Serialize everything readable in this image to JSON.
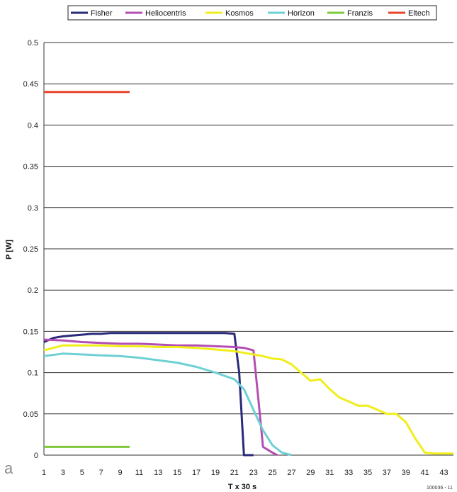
{
  "chart_data": {
    "type": "line",
    "panel_label": "a",
    "figure_code": "100036 - 11",
    "xlabel": "T x 30 s",
    "ylabel": "P [W]",
    "xlim": [
      1,
      44
    ],
    "ylim": [
      0,
      0.5
    ],
    "x_ticks": [
      "1",
      "3",
      "5",
      "7",
      "9",
      "11",
      "13",
      "15",
      "17",
      "19",
      "21",
      "23",
      "25",
      "27",
      "29",
      "31",
      "33",
      "35",
      "37",
      "39",
      "41",
      "43"
    ],
    "y_ticks": [
      "0",
      "0.05",
      "0.1",
      "0.15",
      "0.2",
      "0.25",
      "0.3",
      "0.35",
      "0.4",
      "0.45",
      "0.5"
    ],
    "grid": true,
    "legend_position": "top",
    "series": [
      {
        "name": "Fisher",
        "color": "#2a2a7a",
        "x": [
          1,
          2,
          3,
          4,
          5,
          6,
          7,
          8,
          9,
          10,
          11,
          12,
          13,
          14,
          15,
          16,
          17,
          18,
          19,
          20,
          21,
          21.5,
          22,
          23
        ],
        "y": [
          0.137,
          0.142,
          0.144,
          0.145,
          0.146,
          0.147,
          0.147,
          0.148,
          0.148,
          0.148,
          0.148,
          0.148,
          0.148,
          0.148,
          0.148,
          0.148,
          0.148,
          0.148,
          0.148,
          0.148,
          0.147,
          0.1,
          0.0,
          0.0
        ]
      },
      {
        "name": "Heliocentris",
        "color": "#b34fb3",
        "x": [
          1,
          3,
          5,
          7,
          9,
          11,
          13,
          15,
          17,
          19,
          21,
          22,
          23,
          23.5,
          24,
          25,
          25.5
        ],
        "y": [
          0.14,
          0.139,
          0.137,
          0.136,
          0.135,
          0.135,
          0.134,
          0.133,
          0.133,
          0.132,
          0.131,
          0.13,
          0.127,
          0.07,
          0.01,
          0.003,
          0.0
        ]
      },
      {
        "name": "Kosmos",
        "color": "#f0ee1a",
        "x": [
          1,
          2,
          3,
          5,
          7,
          9,
          11,
          13,
          15,
          17,
          19,
          21,
          22,
          23,
          24,
          25,
          26,
          27,
          28,
          29,
          30,
          31,
          32,
          33,
          34,
          35,
          36,
          37,
          38,
          39,
          40,
          41,
          42,
          43,
          44
        ],
        "y": [
          0.127,
          0.13,
          0.133,
          0.133,
          0.133,
          0.132,
          0.132,
          0.131,
          0.131,
          0.13,
          0.128,
          0.126,
          0.124,
          0.122,
          0.12,
          0.117,
          0.116,
          0.11,
          0.1,
          0.09,
          0.092,
          0.08,
          0.07,
          0.065,
          0.06,
          0.06,
          0.055,
          0.05,
          0.05,
          0.04,
          0.02,
          0.003,
          0.002,
          0.002,
          0.002
        ]
      },
      {
        "name": "Horizon",
        "color": "#6fd0d4",
        "x": [
          1,
          3,
          5,
          7,
          9,
          11,
          13,
          15,
          17,
          19,
          21,
          22,
          23,
          24,
          25,
          26,
          27
        ],
        "y": [
          0.12,
          0.123,
          0.122,
          0.121,
          0.12,
          0.118,
          0.115,
          0.112,
          0.107,
          0.1,
          0.092,
          0.08,
          0.055,
          0.03,
          0.012,
          0.003,
          0.0
        ]
      },
      {
        "name": "Franzis",
        "color": "#7ec83a",
        "x": [
          1,
          10
        ],
        "y": [
          0.01,
          0.01
        ]
      },
      {
        "name": "Eltech",
        "color": "#e8442b",
        "x": [
          1,
          10
        ],
        "y": [
          0.44,
          0.44
        ]
      }
    ]
  }
}
